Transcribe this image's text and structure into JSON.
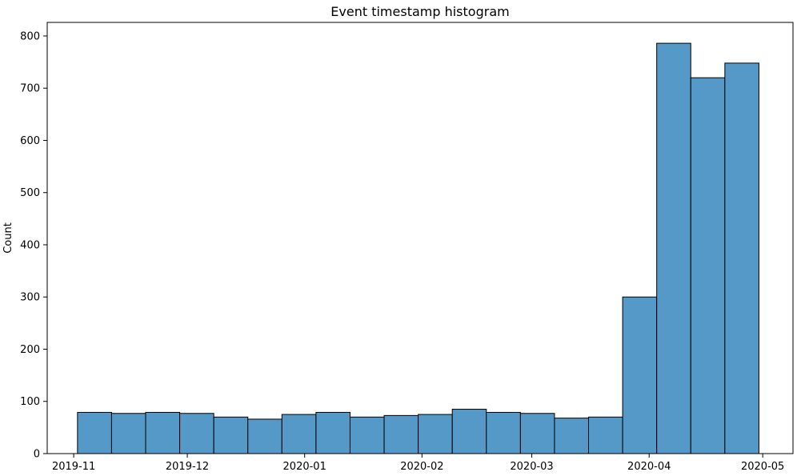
{
  "chart_data": {
    "type": "bar",
    "title": "Event timestamp histogram",
    "xlabel": "",
    "ylabel": "Count",
    "x_ticks": [
      "2019-11",
      "2019-12",
      "2020-01",
      "2020-02",
      "2020-03",
      "2020-04",
      "2020-05"
    ],
    "x_tick_dates": [
      "2019-11-01",
      "2019-12-01",
      "2020-01-01",
      "2020-02-01",
      "2020-03-01",
      "2020-04-01",
      "2020-05-01"
    ],
    "xlim": [
      "2019-10-25",
      "2020-05-09"
    ],
    "y_ticks": [
      0,
      100,
      200,
      300,
      400,
      500,
      600,
      700,
      800
    ],
    "ylim": [
      0,
      826
    ],
    "bins": [
      {
        "start": "2019-11-02",
        "end": "2019-11-11",
        "count": 79
      },
      {
        "start": "2019-11-11",
        "end": "2019-11-20",
        "count": 77
      },
      {
        "start": "2019-11-20",
        "end": "2019-11-29",
        "count": 79
      },
      {
        "start": "2019-11-29",
        "end": "2019-12-08",
        "count": 77
      },
      {
        "start": "2019-12-08",
        "end": "2019-12-17",
        "count": 70
      },
      {
        "start": "2019-12-17",
        "end": "2019-12-26",
        "count": 66
      },
      {
        "start": "2019-12-26",
        "end": "2020-01-04",
        "count": 75
      },
      {
        "start": "2020-01-04",
        "end": "2020-01-13",
        "count": 79
      },
      {
        "start": "2020-01-13",
        "end": "2020-01-22",
        "count": 70
      },
      {
        "start": "2020-01-22",
        "end": "2020-01-31",
        "count": 73
      },
      {
        "start": "2020-01-31",
        "end": "2020-02-09",
        "count": 75
      },
      {
        "start": "2020-02-09",
        "end": "2020-02-18",
        "count": 85
      },
      {
        "start": "2020-02-18",
        "end": "2020-02-27",
        "count": 79
      },
      {
        "start": "2020-02-27",
        "end": "2020-03-07",
        "count": 77
      },
      {
        "start": "2020-03-07",
        "end": "2020-03-16",
        "count": 68
      },
      {
        "start": "2020-03-16",
        "end": "2020-03-25",
        "count": 70
      },
      {
        "start": "2020-03-25",
        "end": "2020-04-03",
        "count": 300
      },
      {
        "start": "2020-04-03",
        "end": "2020-04-12",
        "count": 786
      },
      {
        "start": "2020-04-12",
        "end": "2020-04-21",
        "count": 720
      },
      {
        "start": "2020-04-21",
        "end": "2020-04-30",
        "count": 748
      }
    ],
    "bar_color": "#5499c7",
    "edge_color": "#000000",
    "grid": false,
    "legend": "none"
  }
}
